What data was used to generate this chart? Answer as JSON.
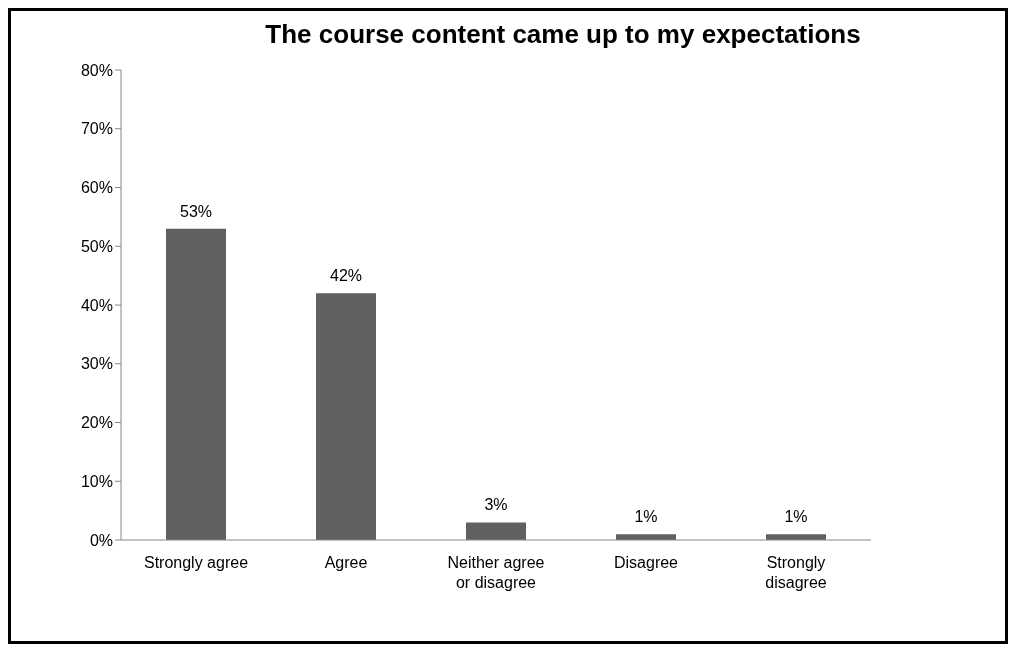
{
  "chart_data": {
    "type": "bar",
    "title": "The course content came up to my expectations",
    "categories": [
      "Strongly agree",
      "Agree",
      "Neither agree or disagree",
      "Disagree",
      "Strongly disagree"
    ],
    "values": [
      53,
      42,
      3,
      1,
      1
    ],
    "value_labels": [
      "53%",
      "42%",
      "3%",
      "1%",
      "1%"
    ],
    "color": "#606060",
    "ylim": [
      0,
      80
    ],
    "yticks": [
      {
        "value": 0,
        "label": "0%"
      },
      {
        "value": 10,
        "label": "10%"
      },
      {
        "value": 20,
        "label": "20%"
      },
      {
        "value": 30,
        "label": "30%"
      },
      {
        "value": 40,
        "label": "40%"
      },
      {
        "value": 50,
        "label": "50%"
      },
      {
        "value": 60,
        "label": "60%"
      },
      {
        "value": 70,
        "label": "70%"
      },
      {
        "value": 80,
        "label": "80%"
      }
    ],
    "grid": false,
    "legend": false
  }
}
